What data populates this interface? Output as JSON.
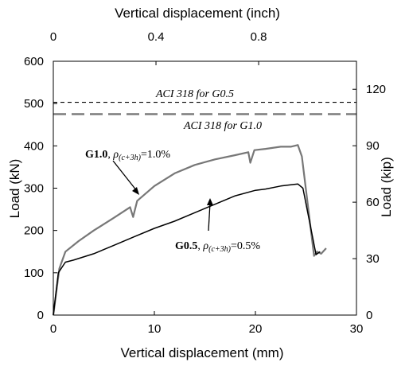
{
  "chart_data": {
    "type": "line",
    "x_axis_bottom": {
      "label": "Vertical displacement (mm)",
      "range": [
        0,
        30
      ],
      "ticks": [
        0,
        10,
        20,
        30
      ]
    },
    "x_axis_top": {
      "label": "Vertical displacement (inch)",
      "ticks": [
        0,
        0.4,
        0.8
      ],
      "tick_labels": [
        "0",
        "0.4",
        "0.8"
      ]
    },
    "y_axis_left": {
      "label": "Load (kN)",
      "range": [
        0,
        600
      ],
      "ticks": [
        0,
        100,
        200,
        300,
        400,
        500,
        600
      ]
    },
    "y_axis_right": {
      "label": "Load (kip)",
      "ticks": [
        0,
        30,
        60,
        90,
        120
      ]
    },
    "grid": false,
    "reference_lines": [
      {
        "label": "ACI 318 for G0.5",
        "y": 503,
        "style": "short-dash",
        "color": "#000000"
      },
      {
        "label": "ACI 318 for G1.0",
        "y": 475,
        "style": "long-dash",
        "color": "#777777"
      }
    ],
    "series": [
      {
        "label_bold": "G1.0",
        "label_sub": "(c+3h)",
        "label_value": "=1.0%",
        "color": "#777777",
        "x": [
          0,
          0.6,
          1.2,
          2.5,
          4,
          6,
          7.6,
          7.9,
          8.3,
          10,
          12,
          14,
          16,
          18,
          19.3,
          19.5,
          19.9,
          21,
          22.5,
          23.5,
          24.2,
          24.6,
          25.8,
          26.1,
          26.5,
          27
        ],
        "y": [
          0,
          110,
          150,
          175,
          200,
          230,
          255,
          232,
          270,
          305,
          335,
          355,
          368,
          378,
          385,
          360,
          390,
          393,
          398,
          398,
          402,
          375,
          140,
          150,
          145,
          158
        ]
      },
      {
        "label_bold": "G0.5",
        "label_sub": "(c+3h)",
        "label_value": "=0.5%",
        "color": "#000000",
        "x": [
          0,
          0.5,
          1.2,
          2,
          4,
          6,
          8,
          10,
          12,
          14,
          16,
          18,
          20,
          21,
          22.5,
          23.5,
          24.2,
          24.7,
          26,
          26.4
        ],
        "y": [
          0,
          100,
          125,
          130,
          145,
          165,
          185,
          205,
          222,
          242,
          262,
          282,
          295,
          298,
          305,
          308,
          310,
          300,
          143,
          150
        ]
      }
    ],
    "annotation_prefix": "ρ"
  }
}
